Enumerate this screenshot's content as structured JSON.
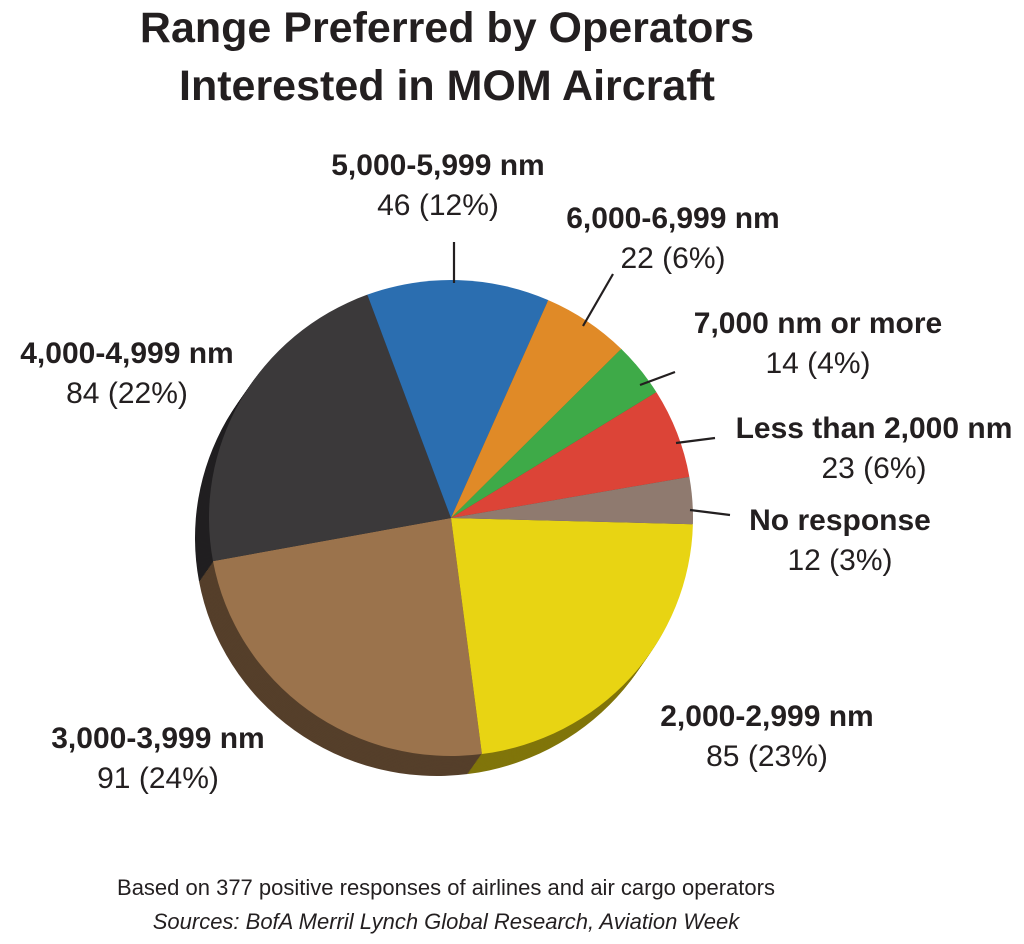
{
  "chart_data": {
    "type": "pie",
    "title": [
      "Range Preferred by Operators",
      "Interested in MOM Aircraft"
    ],
    "total": 377,
    "slices": [
      {
        "label": "2,000-2,999 nm",
        "value": 85,
        "value_text": "85 (23%)",
        "color": "#e8d413"
      },
      {
        "label": "3,000-3,999 nm",
        "value": 91,
        "value_text": "91 (24%)",
        "color": "#9b734c"
      },
      {
        "label": "4,000-4,999 nm",
        "value": 84,
        "value_text": "84 (22%)",
        "color": "#3b393a"
      },
      {
        "label": "5,000-5,999 nm",
        "value": 46,
        "value_text": "46 (12%)",
        "color": "#2b6eb0"
      },
      {
        "label": "6,000-6,999 nm",
        "value": 22,
        "value_text": "22 (6%)",
        "color": "#e08a27"
      },
      {
        "label": "7,000 nm or more",
        "value": 14,
        "value_text": "14 (4%)",
        "color": "#3eaa48"
      },
      {
        "label": "Less than 2,000 nm",
        "value": 23,
        "value_text": "23 (6%)",
        "color": "#dc4437"
      },
      {
        "label": "No response",
        "value": 12,
        "value_text": "12 (3%)",
        "color": "#8f7a6f"
      }
    ],
    "footnote": "Based on 377 positive responses of airlines and air cargo operators",
    "sources": "Sources: BofA Merril Lynch Global Research, Aviation Week"
  }
}
